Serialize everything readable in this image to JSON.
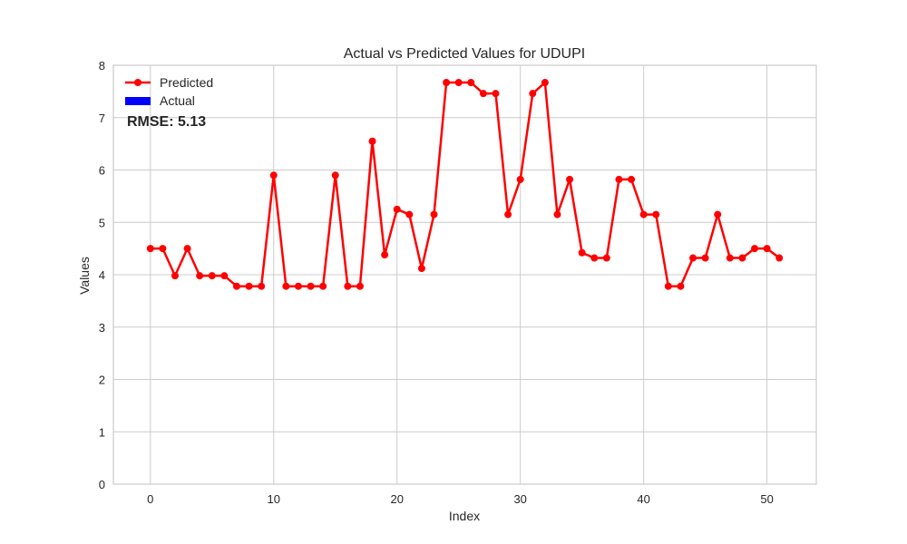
{
  "chart_data": {
    "type": "line",
    "title": "Actual vs Predicted Values for UDUPI",
    "xlabel": "Index",
    "ylabel": "Values",
    "xlim": [
      -3,
      54
    ],
    "ylim": [
      0,
      8
    ],
    "xticks": [
      0,
      10,
      20,
      30,
      40,
      50
    ],
    "yticks": [
      0,
      1,
      2,
      3,
      4,
      5,
      6,
      7,
      8
    ],
    "grid": true,
    "legend_position": "top-left",
    "annotation": {
      "text": "RMSE: 5.13",
      "color": "#ff0000"
    },
    "series": [
      {
        "name": "Predicted",
        "kind": "line-with-markers",
        "color": "#ff0000",
        "x": [
          0,
          1,
          2,
          3,
          4,
          5,
          6,
          7,
          8,
          9,
          10,
          11,
          12,
          13,
          14,
          15,
          16,
          17,
          18,
          19,
          20,
          21,
          22,
          23,
          24,
          25,
          26,
          27,
          28,
          29,
          30,
          31,
          32,
          33,
          34,
          35,
          36,
          37,
          38,
          39,
          40,
          41,
          42,
          43,
          44,
          45,
          46,
          47,
          48,
          49,
          50,
          51
        ],
        "values": [
          4.5,
          4.5,
          3.98,
          4.5,
          3.98,
          3.98,
          3.98,
          3.78,
          3.78,
          3.78,
          5.9,
          3.78,
          3.78,
          3.78,
          3.78,
          5.9,
          3.78,
          3.78,
          6.55,
          4.38,
          5.25,
          5.15,
          4.12,
          5.15,
          7.67,
          7.67,
          7.67,
          7.46,
          7.46,
          5.15,
          5.82,
          7.46,
          7.67,
          5.15,
          5.82,
          4.42,
          4.32,
          4.32,
          5.82,
          5.82,
          5.15,
          5.15,
          3.78,
          3.78,
          4.32,
          4.32,
          5.15,
          4.32,
          4.32,
          4.5,
          4.5,
          4.32
        ]
      },
      {
        "name": "Actual",
        "kind": "bar",
        "color": "#0000ff",
        "x": [],
        "values": []
      }
    ]
  }
}
